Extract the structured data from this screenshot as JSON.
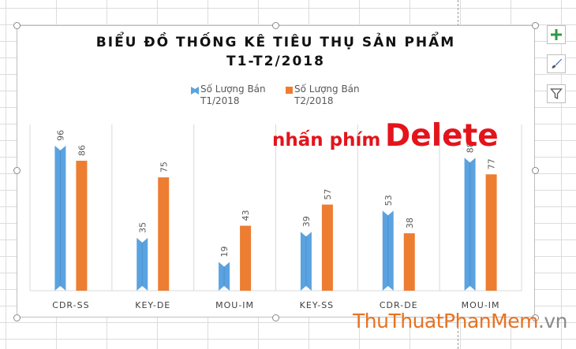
{
  "chart_data": {
    "type": "bar",
    "title_line1": "BIỂU ĐỒ THỐNG KÊ TIÊU THỤ SẢN PHẨM",
    "title_line2": "T1-T2/2018",
    "categories": [
      "CDR-SS",
      "KEY-DE",
      "MOU-IM",
      "KEY-SS",
      "CDR-DE",
      "MOU-IM"
    ],
    "series": [
      {
        "name_line1": "Số Lượng Bán",
        "name_line2": "T1/2018",
        "color": "#5ba3e0",
        "values": [
          96,
          35,
          19,
          39,
          53,
          88
        ]
      },
      {
        "name_line1": "Số Lượng Bán",
        "name_line2": "T2/2018",
        "color": "#ed7d31",
        "values": [
          86,
          75,
          43,
          57,
          38,
          77
        ]
      }
    ],
    "ylim": [
      0,
      110
    ],
    "grid": "vertical",
    "legend_position": "top",
    "data_labels": true
  },
  "annotation": {
    "prefix": "nhấn phím",
    "key": "Delete",
    "color": "#e3141b"
  },
  "watermark": {
    "part1": "ThuThuat",
    "part2": "PhanMem",
    "part3": ".vn"
  },
  "side_buttons": [
    "plus-icon",
    "brush-icon",
    "filter-icon"
  ]
}
